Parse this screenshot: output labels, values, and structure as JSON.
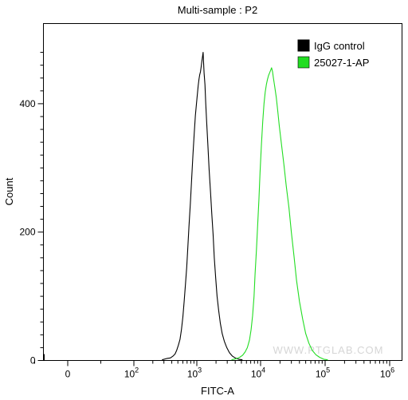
{
  "chart_data": {
    "type": "line",
    "title": "Multi-sample : P2",
    "xlabel": "FITC-A",
    "ylabel": "Count",
    "x_scale": "logicle",
    "ylim": [
      0,
      500
    ],
    "y_ticks": [
      0,
      200,
      400
    ],
    "x_ticks": [
      {
        "value": 0,
        "label": "0",
        "exp": ""
      },
      {
        "value": 100,
        "label": "10",
        "exp": "2"
      },
      {
        "value": 1000,
        "label": "10",
        "exp": "3"
      },
      {
        "value": 10000,
        "label": "10",
        "exp": "4"
      },
      {
        "value": 100000,
        "label": "10",
        "exp": "5"
      },
      {
        "value": 1000000,
        "label": "10",
        "exp": "6"
      }
    ],
    "legend_position": "top-right",
    "watermark": "WWW.PTGLAB.COM",
    "series": [
      {
        "name": "IgG control",
        "color": "#000000",
        "points": [
          [
            280,
            1
          ],
          [
            330,
            3
          ],
          [
            380,
            4
          ],
          [
            420,
            7
          ],
          [
            450,
            10
          ],
          [
            480,
            16
          ],
          [
            510,
            24
          ],
          [
            540,
            33
          ],
          [
            570,
            48
          ],
          [
            600,
            68
          ],
          [
            630,
            92
          ],
          [
            660,
            118
          ],
          [
            690,
            145
          ],
          [
            720,
            176
          ],
          [
            750,
            208
          ],
          [
            790,
            245
          ],
          [
            830,
            285
          ],
          [
            870,
            322
          ],
          [
            910,
            355
          ],
          [
            950,
            382
          ],
          [
            990,
            402
          ],
          [
            1020,
            415
          ],
          [
            1050,
            428
          ],
          [
            1080,
            438
          ],
          [
            1110,
            445
          ],
          [
            1140,
            450
          ],
          [
            1170,
            458
          ],
          [
            1200,
            466
          ],
          [
            1230,
            474
          ],
          [
            1255,
            480
          ],
          [
            1275,
            466
          ],
          [
            1300,
            448
          ],
          [
            1340,
            430
          ],
          [
            1380,
            400
          ],
          [
            1430,
            370
          ],
          [
            1490,
            335
          ],
          [
            1560,
            298
          ],
          [
            1640,
            262
          ],
          [
            1720,
            228
          ],
          [
            1800,
            197
          ],
          [
            1880,
            160
          ],
          [
            1980,
            128
          ],
          [
            2080,
            100
          ],
          [
            2200,
            78
          ],
          [
            2340,
            58
          ],
          [
            2500,
            42
          ],
          [
            2700,
            30
          ],
          [
            2950,
            20
          ],
          [
            3250,
            12
          ],
          [
            3600,
            7
          ],
          [
            4000,
            4
          ],
          [
            4500,
            2
          ],
          [
            5200,
            1
          ]
        ]
      },
      {
        "name": "25027-1-AP",
        "color": "#22dd22",
        "points": [
          [
            3500,
            1
          ],
          [
            4200,
            3
          ],
          [
            4700,
            5
          ],
          [
            5200,
            8
          ],
          [
            5700,
            13
          ],
          [
            6200,
            20
          ],
          [
            6700,
            32
          ],
          [
            7100,
            48
          ],
          [
            7500,
            70
          ],
          [
            7900,
            100
          ],
          [
            8200,
            135
          ],
          [
            8600,
            172
          ],
          [
            9000,
            210
          ],
          [
            9400,
            250
          ],
          [
            9800,
            292
          ],
          [
            10300,
            335
          ],
          [
            10800,
            372
          ],
          [
            11300,
            400
          ],
          [
            11800,
            418
          ],
          [
            12300,
            430
          ],
          [
            12800,
            438
          ],
          [
            13300,
            444
          ],
          [
            13800,
            448
          ],
          [
            14300,
            452
          ],
          [
            14800,
            456
          ],
          [
            15300,
            450
          ],
          [
            15800,
            440
          ],
          [
            16500,
            428
          ],
          [
            17500,
            410
          ],
          [
            18500,
            388
          ],
          [
            19500,
            365
          ],
          [
            21000,
            338
          ],
          [
            23000,
            305
          ],
          [
            25000,
            272
          ],
          [
            27500,
            238
          ],
          [
            30000,
            200
          ],
          [
            33000,
            162
          ],
          [
            36000,
            125
          ],
          [
            40000,
            92
          ],
          [
            45000,
            64
          ],
          [
            50000,
            42
          ],
          [
            56000,
            27
          ],
          [
            63000,
            16
          ],
          [
            72000,
            9
          ],
          [
            82000,
            5
          ],
          [
            95000,
            2
          ],
          [
            110000,
            1
          ]
        ]
      }
    ]
  }
}
